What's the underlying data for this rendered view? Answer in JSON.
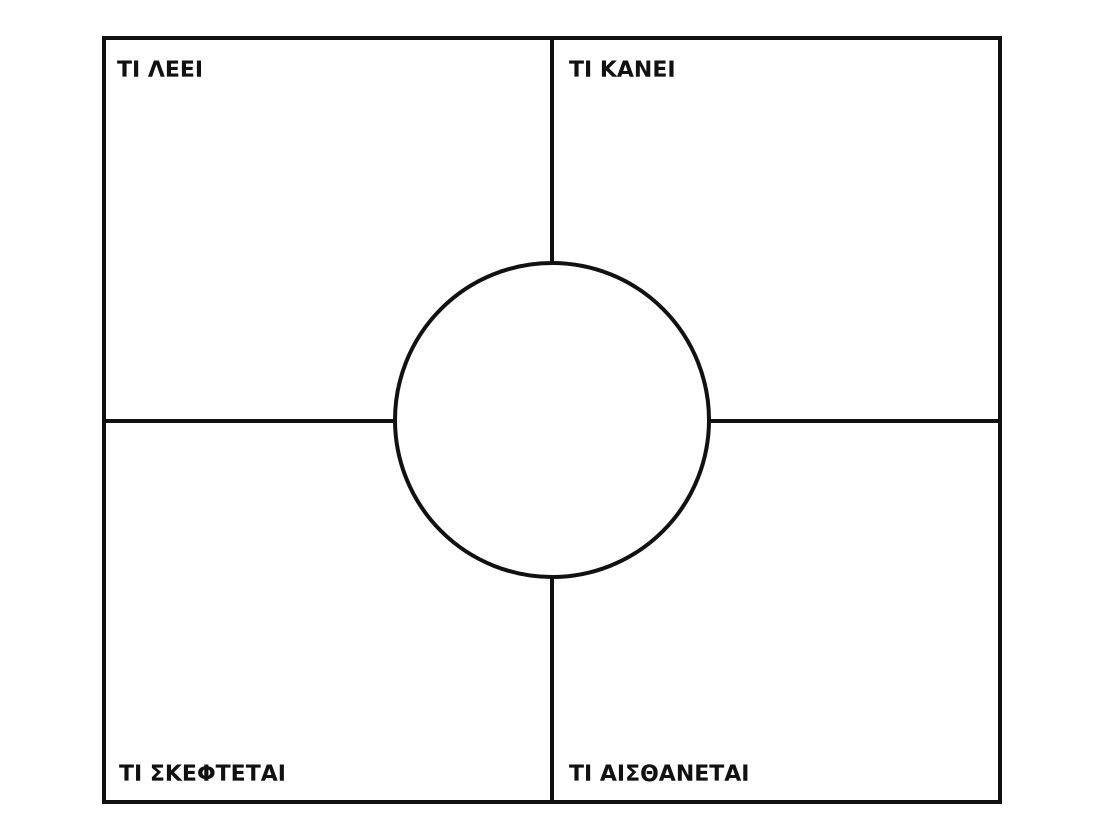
{
  "diagram": {
    "quadrants": {
      "top_left": {
        "label": "ΤΙ ΛΕΕΙ"
      },
      "top_right": {
        "label": "ΤΙ ΚΑΝΕΙ"
      },
      "bottom_left": {
        "label": "ΤΙ ΣΚΕΦΤΕΤΑΙ"
      },
      "bottom_right": {
        "label": "ΤΙ ΑΙΣΘΑΝΕΤΑΙ"
      }
    },
    "colors": {
      "stroke": "#111111",
      "background": "#ffffff"
    }
  }
}
